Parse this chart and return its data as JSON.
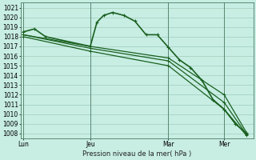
{
  "xlabel": "Pression niveau de la mer( hPa )",
  "ylim": [
    1007.5,
    1021.5
  ],
  "yticks": [
    1008,
    1009,
    1010,
    1011,
    1012,
    1013,
    1014,
    1015,
    1016,
    1017,
    1018,
    1019,
    1020,
    1021
  ],
  "bg_color": "#c8eee4",
  "grid_color": "#a0ccb8",
  "line_color": "#1a6020",
  "xtick_labels": [
    "Lun",
    "Jeu",
    "Mar",
    "Mer"
  ],
  "xtick_positions": [
    0,
    3,
    6.5,
    9
  ],
  "xlim": [
    -0.1,
    10.3
  ],
  "vline_positions": [
    0,
    3,
    6.5,
    9
  ],
  "series": [
    {
      "x": [
        0,
        0.5,
        1.0,
        3.0,
        3.3,
        3.6,
        4.0,
        4.5,
        5.0,
        5.5,
        6.0,
        6.5,
        7.0,
        7.5,
        8.0,
        8.5,
        9.0,
        9.5,
        10.0
      ],
      "y": [
        1018.5,
        1018.8,
        1018.0,
        1017.0,
        1019.5,
        1020.2,
        1020.5,
        1020.2,
        1019.6,
        1018.2,
        1018.2,
        1016.9,
        1015.6,
        1014.8,
        1013.5,
        1011.5,
        1010.5,
        1009.0,
        1008.0
      ],
      "lw": 1.2,
      "marker_size": 2.5
    },
    {
      "x": [
        0,
        3,
        6.5,
        9.0,
        10.0
      ],
      "y": [
        1018.2,
        1016.8,
        1015.5,
        1011.2,
        1007.9
      ],
      "lw": 0.9,
      "marker_size": 2.2
    },
    {
      "x": [
        0,
        3,
        6.5,
        9.0,
        10.0
      ],
      "y": [
        1018.0,
        1016.5,
        1015.0,
        1010.5,
        1007.8
      ],
      "lw": 0.9,
      "marker_size": 2.2
    },
    {
      "x": [
        0,
        3,
        6.5,
        9.0,
        10.0
      ],
      "y": [
        1018.2,
        1017.0,
        1015.8,
        1012.0,
        1008.1
      ],
      "lw": 0.9,
      "marker_size": 2.2
    }
  ]
}
